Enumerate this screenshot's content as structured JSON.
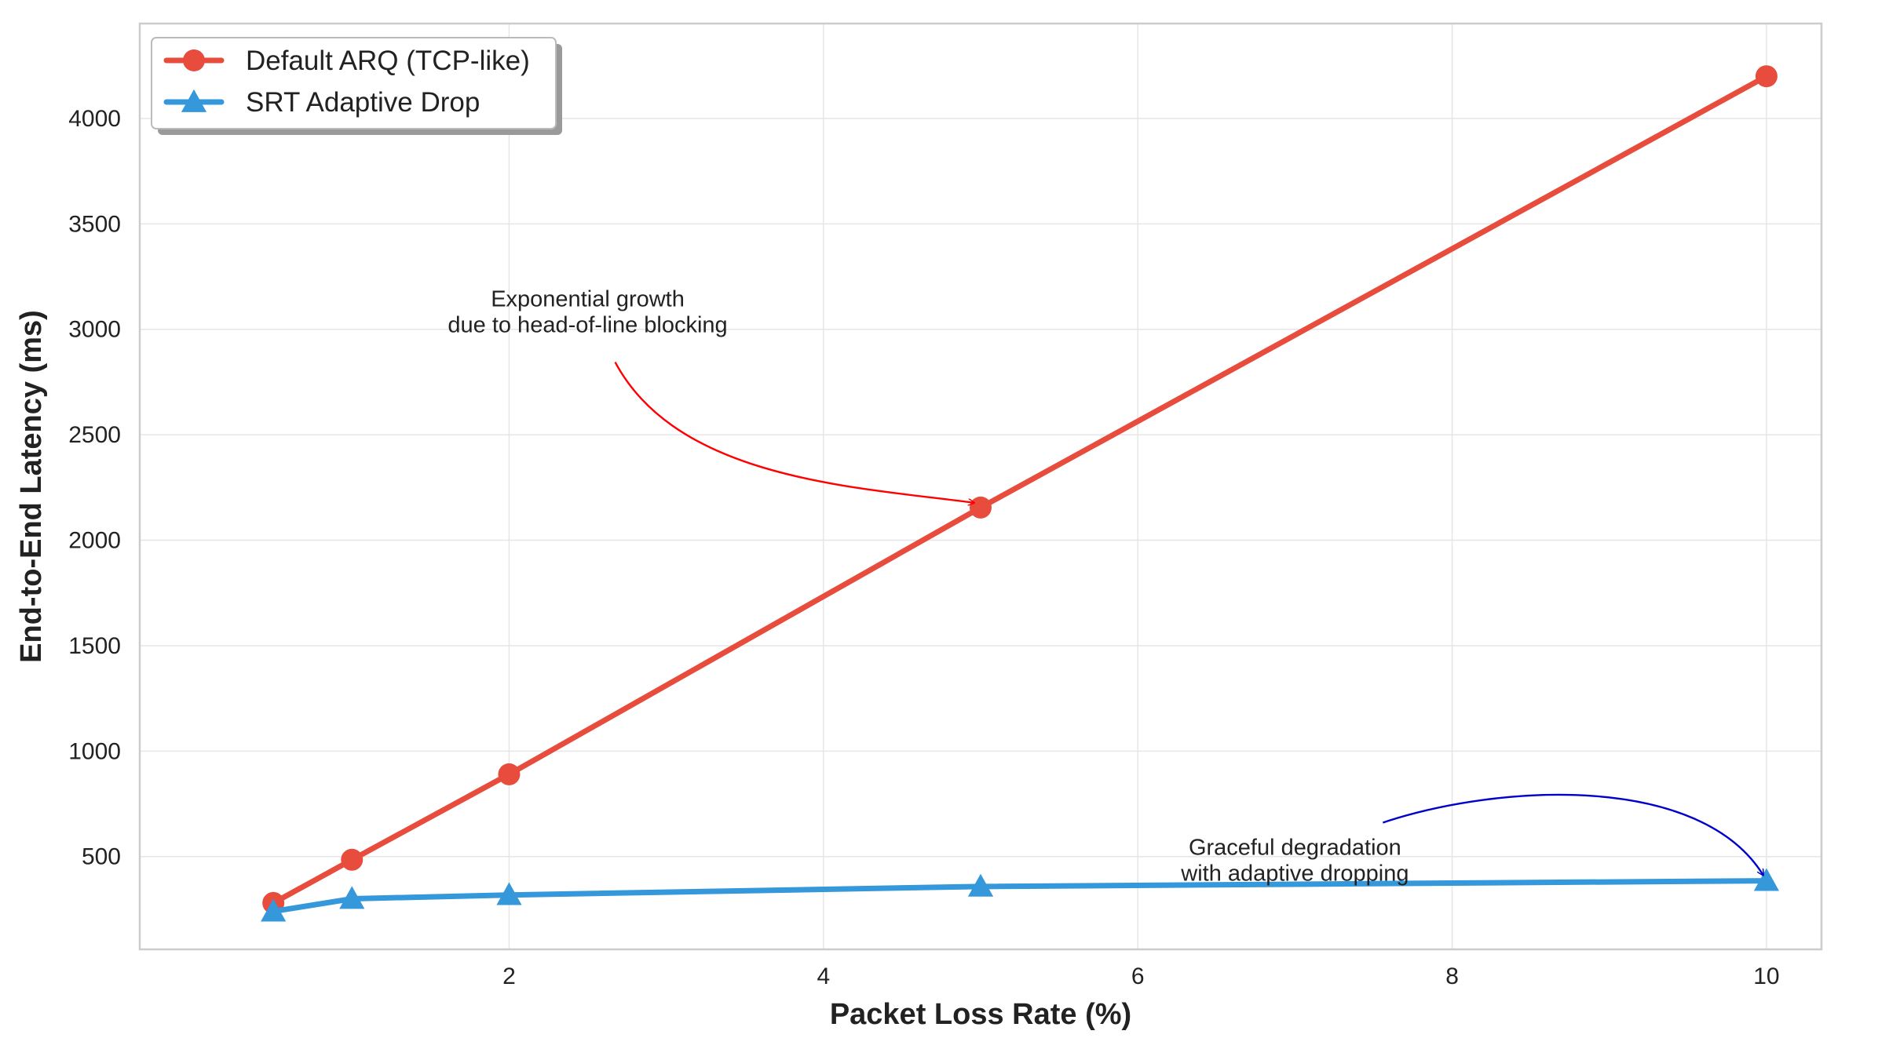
{
  "chart_data": {
    "type": "line",
    "title": "",
    "xlabel": "Packet Loss Rate (%)",
    "ylabel": "End-to-End Latency (ms)",
    "xlim": [
      -0.35,
      10.35
    ],
    "ylim": [
      60,
      4450
    ],
    "xticks": [
      2,
      4,
      6,
      8,
      10
    ],
    "yticks": [
      500,
      1000,
      1500,
      2000,
      2500,
      3000,
      3500,
      4000
    ],
    "grid": true,
    "legend_position": "top-left",
    "series": [
      {
        "name": "Default ARQ (TCP-like)",
        "color": "#e74c3c",
        "marker": "circle",
        "x": [
          0.5,
          1,
          2,
          5,
          10
        ],
        "y": [
          280,
          485,
          890,
          2155,
          4200
        ]
      },
      {
        "name": "SRT Adaptive Drop",
        "color": "#3498db",
        "marker": "triangle",
        "x": [
          0.5,
          1,
          2,
          5,
          10
        ],
        "y": [
          240,
          300,
          318,
          358,
          385
        ]
      }
    ],
    "annotations": [
      {
        "lines": [
          "Exponential growth",
          "due to head-of-line blocking"
        ],
        "text_x": 2.5,
        "text_y": 3075,
        "target_x": 5,
        "target_y": 2155,
        "color": "#ff0000"
      },
      {
        "lines": [
          "Graceful degradation",
          "with adaptive dropping"
        ],
        "text_x": 7,
        "text_y": 475,
        "target_x": 10,
        "target_y": 385,
        "color": "#0000cc"
      }
    ]
  }
}
